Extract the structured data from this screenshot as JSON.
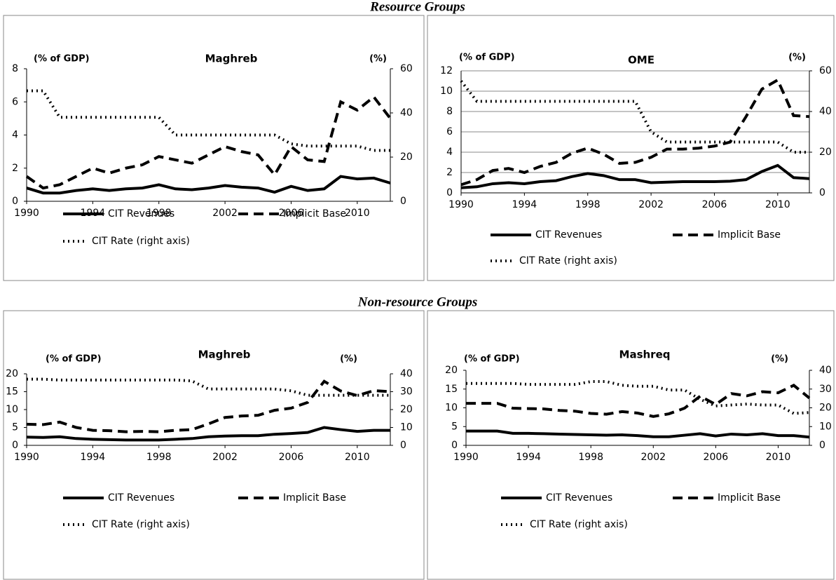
{
  "headings": [
    "Resource Groups",
    "Non-resource Groups"
  ],
  "chart_data": [
    {
      "type": "line",
      "title": "Maghreb",
      "y_label": "(% of GDP)",
      "y2_label": "(%)",
      "x": [
        1990,
        1991,
        1992,
        1993,
        1994,
        1995,
        1996,
        1997,
        1998,
        1999,
        2000,
        2001,
        2002,
        2003,
        2004,
        2005,
        2006,
        2007,
        2008,
        2009,
        2010,
        2011,
        2012
      ],
      "xlim": [
        1990,
        2012
      ],
      "xticks": [
        1990,
        1994,
        1998,
        2002,
        2006,
        2010
      ],
      "ylim": [
        0,
        8
      ],
      "yticks": [
        0,
        2,
        4,
        6,
        8
      ],
      "y2lim": [
        0,
        60
      ],
      "y2ticks": [
        0,
        20,
        40,
        60
      ],
      "grid": false,
      "series": [
        {
          "name": "CIT Revenues",
          "color": "#000000",
          "line_style": "solid",
          "values": [
            0.8,
            0.5,
            0.5,
            0.65,
            0.75,
            0.65,
            0.75,
            0.8,
            1.0,
            0.75,
            0.7,
            0.8,
            0.95,
            0.85,
            0.8,
            0.55,
            0.9,
            0.65,
            0.75,
            1.5,
            1.35,
            1.4,
            1.1
          ]
        },
        {
          "name": "Implicit Base",
          "color": "#000000",
          "line_style": "dashed",
          "values": [
            1.5,
            0.8,
            1.0,
            1.5,
            2.0,
            1.7,
            2.0,
            2.2,
            2.7,
            2.5,
            2.3,
            2.8,
            3.3,
            3.0,
            2.8,
            1.6,
            3.3,
            2.5,
            2.4,
            6.0,
            5.5,
            6.3,
            5.0
          ]
        },
        {
          "name": "CIT Rate (right axis)",
          "color": "#000000",
          "line_style": "dotted",
          "axis": "y2",
          "values": [
            50,
            50,
            38,
            38,
            38,
            38,
            38,
            38,
            38,
            30,
            30,
            30,
            30,
            30,
            30,
            30,
            26,
            25,
            25,
            25,
            25,
            23,
            23
          ]
        }
      ]
    },
    {
      "type": "line",
      "title": "OME",
      "y_label": "(% of GDP)",
      "y2_label": "(%)",
      "x": [
        1990,
        1991,
        1992,
        1993,
        1994,
        1995,
        1996,
        1997,
        1998,
        1999,
        2000,
        2001,
        2002,
        2003,
        2004,
        2005,
        2006,
        2007,
        2008,
        2009,
        2010,
        2011,
        2012
      ],
      "xlim": [
        1990,
        2012
      ],
      "xticks": [
        1990,
        1994,
        1998,
        2002,
        2006,
        2010
      ],
      "ylim": [
        0,
        12
      ],
      "yticks": [
        0,
        2,
        4,
        6,
        8,
        10,
        12
      ],
      "y2lim": [
        0,
        60
      ],
      "y2ticks": [
        0,
        20,
        40,
        60
      ],
      "grid": true,
      "series": [
        {
          "name": "CIT Revenues",
          "color": "#000000",
          "line_style": "solid",
          "values": [
            0.5,
            0.6,
            0.9,
            1.0,
            0.9,
            1.1,
            1.2,
            1.6,
            1.9,
            1.7,
            1.3,
            1.3,
            1.0,
            1.05,
            1.1,
            1.1,
            1.1,
            1.15,
            1.3,
            2.1,
            2.7,
            1.5,
            1.4
          ]
        },
        {
          "name": "Implicit Base",
          "color": "#000000",
          "line_style": "dashed",
          "values": [
            0.8,
            1.3,
            2.2,
            2.4,
            2.0,
            2.6,
            3.0,
            3.9,
            4.4,
            3.8,
            2.9,
            3.0,
            3.5,
            4.3,
            4.3,
            4.4,
            4.6,
            5.0,
            7.5,
            10.2,
            11.1,
            7.6,
            7.5
          ]
        },
        {
          "name": "CIT Rate (right axis)",
          "color": "#000000",
          "line_style": "dotted",
          "axis": "y2",
          "values": [
            55,
            45,
            45,
            45,
            45,
            45,
            45,
            45,
            45,
            45,
            45,
            45,
            30,
            25,
            25,
            25,
            25,
            25,
            25,
            25,
            25,
            20,
            20
          ]
        }
      ]
    },
    {
      "type": "line",
      "title": "Maghreb",
      "y_label": "(% of GDP)",
      "y2_label": "(%)",
      "x": [
        1990,
        1991,
        1992,
        1993,
        1994,
        1995,
        1996,
        1997,
        1998,
        1999,
        2000,
        2001,
        2002,
        2003,
        2004,
        2005,
        2006,
        2007,
        2008,
        2009,
        2010,
        2011,
        2012
      ],
      "xlim": [
        1990,
        2012
      ],
      "xticks": [
        1990,
        1994,
        1998,
        2002,
        2006,
        2010
      ],
      "ylim": [
        0,
        20
      ],
      "yticks": [
        0,
        5,
        10,
        15,
        20
      ],
      "y2lim": [
        0,
        40
      ],
      "y2ticks": [
        0,
        10,
        20,
        30,
        40
      ],
      "grid": false,
      "series": [
        {
          "name": "CIT Revenues",
          "color": "#000000",
          "line_style": "solid",
          "values": [
            2.3,
            2.2,
            2.4,
            1.9,
            1.7,
            1.6,
            1.5,
            1.5,
            1.5,
            1.7,
            1.9,
            2.4,
            2.6,
            2.7,
            2.7,
            3.1,
            3.3,
            3.6,
            5.0,
            4.4,
            3.9,
            4.2,
            4.2
          ]
        },
        {
          "name": "Implicit Base",
          "color": "#000000",
          "line_style": "dashed",
          "values": [
            5.9,
            5.8,
            6.5,
            5.0,
            4.2,
            4.1,
            3.8,
            3.9,
            3.8,
            4.2,
            4.4,
            6.0,
            7.8,
            8.2,
            8.4,
            9.8,
            10.4,
            12.0,
            17.9,
            15.2,
            13.9,
            15.3,
            15.0
          ]
        },
        {
          "name": "CIT Rate (right axis)",
          "color": "#000000",
          "line_style": "dotted",
          "axis": "y2",
          "values": [
            37,
            37,
            36.5,
            36.5,
            36.5,
            36.5,
            36.5,
            36.5,
            36.5,
            36.5,
            36,
            31.5,
            31.5,
            31.5,
            31.5,
            31.5,
            30.5,
            28,
            28,
            28,
            28,
            28,
            28
          ]
        }
      ]
    },
    {
      "type": "line",
      "title": "Mashreq",
      "y_label": "(% of GDP)",
      "y2_label": "(%)",
      "x": [
        1990,
        1991,
        1992,
        1993,
        1994,
        1995,
        1996,
        1997,
        1998,
        1999,
        2000,
        2001,
        2002,
        2003,
        2004,
        2005,
        2006,
        2007,
        2008,
        2009,
        2010,
        2011,
        2012
      ],
      "xlim": [
        1990,
        2012
      ],
      "xticks": [
        1990,
        1994,
        1998,
        2002,
        2006,
        2010
      ],
      "ylim": [
        0,
        20
      ],
      "yticks": [
        0,
        5,
        10,
        15,
        20
      ],
      "y2lim": [
        0,
        40
      ],
      "y2ticks": [
        0,
        10,
        20,
        30,
        40
      ],
      "grid": false,
      "series": [
        {
          "name": "CIT Revenues",
          "color": "#000000",
          "line_style": "solid",
          "values": [
            3.8,
            3.8,
            3.8,
            3.2,
            3.2,
            3.1,
            3.0,
            2.9,
            2.8,
            2.7,
            2.8,
            2.6,
            2.3,
            2.3,
            2.7,
            3.1,
            2.5,
            3.0,
            2.8,
            3.1,
            2.6,
            2.6,
            2.2
          ]
        },
        {
          "name": "Implicit Base",
          "color": "#000000",
          "line_style": "dashed",
          "values": [
            11.2,
            11.2,
            11.2,
            9.9,
            9.8,
            9.7,
            9.3,
            9.1,
            8.5,
            8.3,
            9.0,
            8.6,
            7.7,
            8.4,
            9.9,
            13.1,
            10.9,
            13.8,
            13.2,
            14.3,
            14.0,
            16.0,
            12.6
          ]
        },
        {
          "name": "CIT Rate (right axis)",
          "color": "#000000",
          "line_style": "dotted",
          "axis": "y2",
          "values": [
            33,
            33,
            33,
            33,
            32.5,
            32.5,
            32.5,
            32.5,
            34,
            34,
            32,
            31.5,
            31.5,
            29.5,
            29.5,
            24.5,
            21,
            21.5,
            22,
            21.5,
            21.5,
            17,
            17.5
          ]
        }
      ]
    }
  ]
}
